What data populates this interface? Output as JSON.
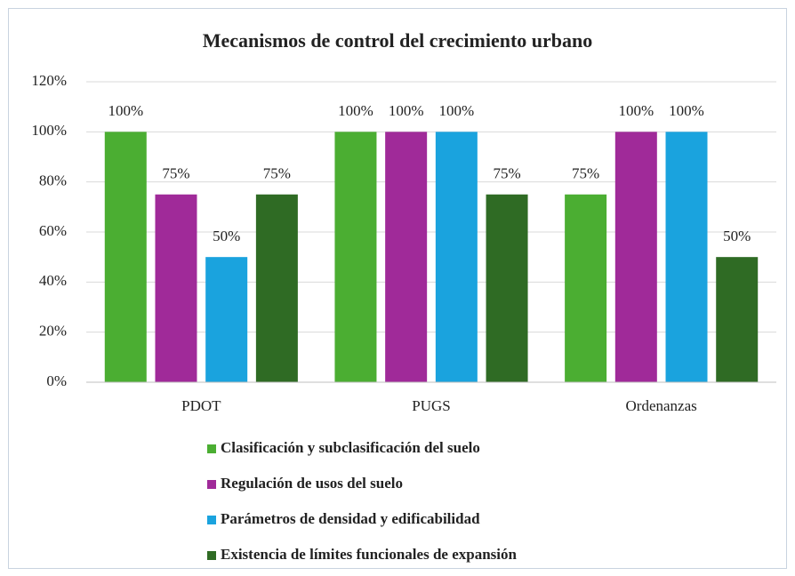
{
  "chart_data": {
    "type": "bar",
    "title": "Mecanismos de control del crecimiento urbano",
    "categories": [
      "PDOT",
      "PUGS",
      "Ordenanzas"
    ],
    "series": [
      {
        "name": "Clasificación y subclasificación del suelo",
        "color": "#4bae32",
        "values": [
          100,
          100,
          75
        ],
        "value_labels": [
          "100%",
          "100%",
          "75%"
        ]
      },
      {
        "name": "Regulación de usos del suelo",
        "color": "#a02a99",
        "values": [
          75,
          100,
          100
        ],
        "value_labels": [
          "75%",
          "100%",
          "100%"
        ]
      },
      {
        "name": "Parámetros de densidad y edificabilidad",
        "color": "#1aa3de",
        "values": [
          50,
          100,
          100
        ],
        "value_labels": [
          "50%",
          "100%",
          "100%"
        ]
      },
      {
        "name": "Existencia de límites funcionales de expansión",
        "color": "#2f6b24",
        "values": [
          75,
          75,
          50
        ],
        "value_labels": [
          "75%",
          "75%",
          "50%"
        ]
      }
    ],
    "ylim": [
      0,
      120
    ],
    "yticks": [
      {
        "value": 0,
        "label": "0%"
      },
      {
        "value": 20,
        "label": "20%"
      },
      {
        "value": 40,
        "label": "40%"
      },
      {
        "value": 60,
        "label": "60%"
      },
      {
        "value": 80,
        "label": "80%"
      },
      {
        "value": 100,
        "label": "100%"
      },
      {
        "value": 120,
        "label": "120%"
      }
    ],
    "grid": true
  }
}
